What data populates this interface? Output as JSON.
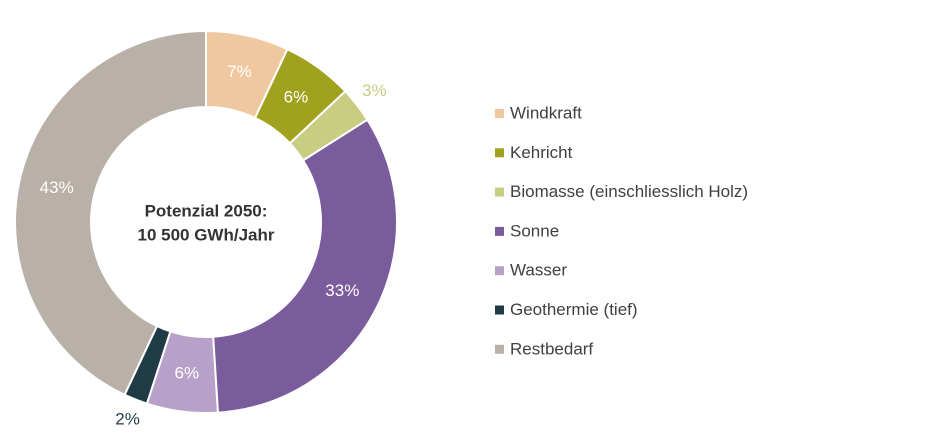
{
  "chart_data": {
    "type": "donut",
    "center_label": [
      "Potenzial 2050:",
      "10 500 GWh/Jahr"
    ],
    "categories": [
      "Windkraft",
      "Kehricht",
      "Biomasse (einschliesslich Holz)",
      "Sonne",
      "Wasser",
      "Geothermie (tief)",
      "Restbedarf"
    ],
    "values": [
      7,
      6,
      3,
      33,
      6,
      2,
      43
    ],
    "value_labels": [
      "7%",
      "6%",
      "3%",
      "33%",
      "6%",
      "2%",
      "43%"
    ],
    "colors": [
      "#f0c8a0",
      "#a0a11e",
      "#c9cd82",
      "#7a5b9b",
      "#b8a1c9",
      "#1f3b45",
      "#b9b0a7"
    ],
    "legend": "right"
  }
}
